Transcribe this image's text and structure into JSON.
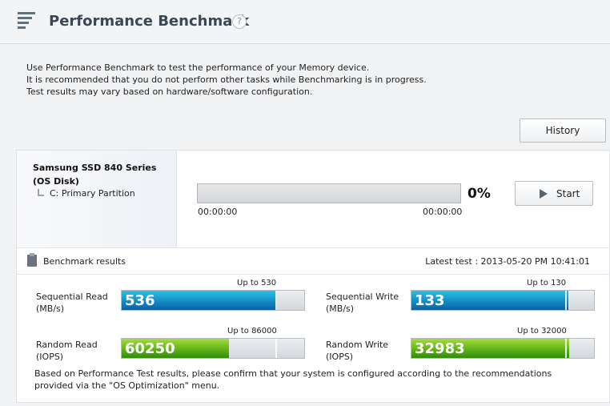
{
  "header": {
    "title": "Performance Benchmark",
    "help_glyph": "?"
  },
  "intro": {
    "line1": "Use Performance Benchmark to test the performance of your Memory device.",
    "line2": "It is recommended that you do not perform other tasks while Benchmarking is in progress.",
    "line3": "Test results may vary based on hardware/software configuration."
  },
  "history_button": "History",
  "device": {
    "name_line1": "Samsung SSD 840 Series",
    "name_line2": "(OS Disk)",
    "partition": "C: Primary Partition"
  },
  "progress": {
    "value": 0,
    "percent_label": "0%",
    "time_elapsed": "00:00:00",
    "time_remaining": "00:00:00"
  },
  "start_button": "Start",
  "results": {
    "title": "Benchmark results",
    "latest_test": "Latest test : 2013-05-20 PM 10:41:01",
    "metrics": {
      "seq_read": {
        "label1": "Sequential Read",
        "label2": "(MB/s)",
        "value": 536,
        "max": 530,
        "upto": "Up to 530",
        "color": "blue"
      },
      "seq_write": {
        "label1": "Sequential Write",
        "label2": "(MB/s)",
        "value": 133,
        "max": 130,
        "upto": "Up to 130",
        "color": "blue"
      },
      "rand_read": {
        "label1": "Random Read",
        "label2": "(IOPS)",
        "value": 60250,
        "max": 86000,
        "upto": "Up to 86000",
        "color": "green"
      },
      "rand_write": {
        "label1": "Random Write",
        "label2": "(IOPS)",
        "value": 32983,
        "max": 32000,
        "upto": "Up to 32000",
        "color": "green"
      }
    },
    "footer_line1": "Based on Performance Test results, please confirm that your system is configured according to the recommendations",
    "footer_line2": "provided via the \"OS Optimization\" menu."
  },
  "colors": {
    "title": "#3b4656",
    "blue_bar": "#1796cb",
    "green_bar": "#6dbb1e"
  }
}
